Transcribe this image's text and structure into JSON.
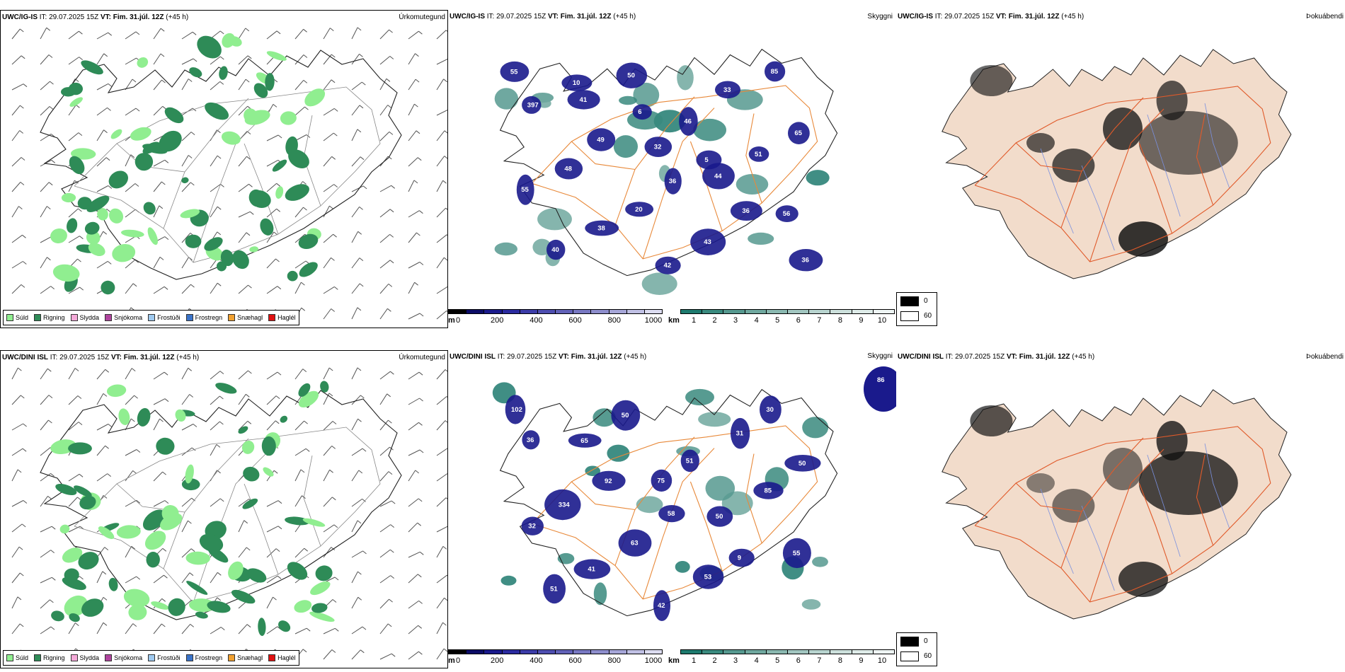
{
  "rows": [
    {
      "model": "UWC/IG-IS",
      "issue_label": "IT:",
      "issue_time": "29.07.2025 15Z",
      "valid_label": "VT:",
      "valid_time": "Fim. 31.júl. 12Z",
      "lead": "(+45 h)",
      "precip_label": "Úrkomutegund",
      "sky_label": "Skyggni",
      "fog_label": "Þokuábendi",
      "cloud_labels": [
        "55",
        "41",
        "32",
        "44",
        "56",
        "40",
        "50",
        "46",
        "51",
        "55",
        "38",
        "42",
        "33",
        "65",
        "48",
        "20",
        "43",
        "85",
        "397",
        "49",
        "36",
        "36",
        "36",
        "10",
        "6",
        "5"
      ]
    },
    {
      "model": "UWC/DINI ISL",
      "issue_label": "IT:",
      "issue_time": "29.07.2025 15Z",
      "valid_label": "VT:",
      "valid_time": "Fim. 31.júl. 12Z",
      "lead": "(+45 h)",
      "precip_label": "Úrkomutegund",
      "sky_label": "Skyggni",
      "fog_label": "Þokuábendi",
      "corner_value": "86",
      "cloud_labels": [
        "102",
        "65",
        "75",
        "50",
        "55",
        "51",
        "50",
        "51",
        "85",
        "32",
        "41",
        "42",
        "31",
        "50",
        "334",
        "63",
        "53",
        "30",
        "36",
        "92",
        "58",
        "9"
      ]
    }
  ],
  "precip_legend": [
    {
      "label": "Súld",
      "color": "#90ee90"
    },
    {
      "label": "Rigning",
      "color": "#2e8b57"
    },
    {
      "label": "Slydda",
      "color": "#f4a9d8"
    },
    {
      "label": "Snjókoma",
      "color": "#b0449e"
    },
    {
      "label": "Frostúði",
      "color": "#9ec9ef"
    },
    {
      "label": "Frostregn",
      "color": "#3a73c9"
    },
    {
      "label": "Snæhagl",
      "color": "#f0a030"
    },
    {
      "label": "Haglél",
      "color": "#e01010"
    }
  ],
  "cloud_base_scale": {
    "unit": "m",
    "ticks": [
      "0",
      "200",
      "400",
      "600",
      "800",
      "1000"
    ],
    "colors": [
      "#000000",
      "#0c0c66",
      "#1a1a8c",
      "#2b2ba0",
      "#3c3ca8",
      "#4e4eb0",
      "#6262b8",
      "#7878c2",
      "#8e8ecc",
      "#a6a6d8",
      "#c0c0e4",
      "#dcdcf0"
    ]
  },
  "visibility_scale": {
    "unit": "km",
    "ticks": [
      "1",
      "2",
      "3",
      "4",
      "5",
      "6",
      "7",
      "8",
      "9",
      "10"
    ],
    "colors": [
      "#1e7a6e",
      "#3a8a7e",
      "#56998f",
      "#70a89f",
      "#8ab8b0",
      "#a2c6c0",
      "#b8d4cf",
      "#cce0dc",
      "#deebe8",
      "#eef5f4"
    ]
  },
  "fog_scale": {
    "labels": [
      "0",
      "60"
    ],
    "colors": [
      "#000000",
      "#ffffff"
    ]
  }
}
